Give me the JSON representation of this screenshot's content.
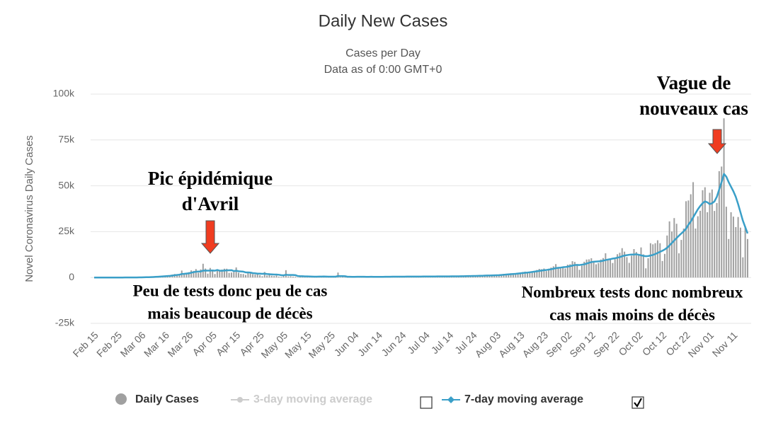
{
  "chart_data": {
    "type": "bar+line",
    "title": "Daily New Cases",
    "subtitle": [
      "Cases per Day",
      "Data as of 0:00 GMT+0"
    ],
    "y_label": "Novel Coronavirus Daily Cases",
    "ylim": [
      -25000,
      100000
    ],
    "yticks": [
      {
        "value": -25000,
        "label": "-25k"
      },
      0,
      {
        "value": 25000,
        "label": "25k"
      },
      {
        "value": 50000,
        "label": "50k"
      },
      {
        "value": 75000,
        "label": "75k"
      },
      {
        "value": 100000,
        "label": "100k"
      }
    ],
    "grid": true,
    "categories": [
      "Feb 15",
      null,
      null,
      null,
      null,
      null,
      null,
      null,
      null,
      null,
      "Feb 25",
      null,
      null,
      null,
      null,
      null,
      null,
      null,
      null,
      null,
      "Mar 06",
      null,
      null,
      null,
      null,
      null,
      null,
      null,
      null,
      null,
      "Mar 16",
      null,
      null,
      null,
      null,
      null,
      null,
      null,
      null,
      null,
      "Mar 26",
      null,
      null,
      null,
      null,
      null,
      null,
      null,
      null,
      null,
      "Apr 05",
      null,
      null,
      null,
      null,
      null,
      null,
      null,
      null,
      null,
      "Apr 15",
      null,
      null,
      null,
      null,
      null,
      null,
      null,
      null,
      null,
      "Apr 25",
      null,
      null,
      null,
      null,
      null,
      null,
      null,
      null,
      null,
      "May 05",
      null,
      null,
      null,
      null,
      null,
      null,
      null,
      null,
      null,
      "May 15",
      null,
      null,
      null,
      null,
      null,
      null,
      null,
      null,
      null,
      "May 25",
      null,
      null,
      null,
      null,
      null,
      null,
      null,
      null,
      null,
      "Jun 04",
      null,
      null,
      null,
      null,
      null,
      null,
      null,
      null,
      null,
      "Jun 14",
      null,
      null,
      null,
      null,
      null,
      null,
      null,
      null,
      null,
      "Jun 24",
      null,
      null,
      null,
      null,
      null,
      null,
      null,
      null,
      null,
      "Jul 04",
      null,
      null,
      null,
      null,
      null,
      null,
      null,
      null,
      null,
      "Jul 14",
      null,
      null,
      null,
      null,
      null,
      null,
      null,
      null,
      null,
      "Jul 24",
      null,
      null,
      null,
      null,
      null,
      null,
      null,
      null,
      null,
      "Aug 03",
      null,
      null,
      null,
      null,
      null,
      null,
      null,
      null,
      null,
      "Aug 13",
      null,
      null,
      null,
      null,
      null,
      null,
      null,
      null,
      null,
      "Aug 23",
      null,
      null,
      null,
      null,
      null,
      null,
      null,
      null,
      null,
      "Sep 02",
      null,
      null,
      null,
      null,
      null,
      null,
      null,
      null,
      null,
      "Sep 12",
      null,
      null,
      null,
      null,
      null,
      null,
      null,
      null,
      null,
      "Sep 22",
      null,
      null,
      null,
      null,
      null,
      null,
      null,
      null,
      null,
      "Oct 02",
      null,
      null,
      null,
      null,
      null,
      null,
      null,
      null,
      null,
      "Oct 12",
      null,
      null,
      null,
      null,
      null,
      null,
      null,
      null,
      null,
      "Oct 22",
      null,
      null,
      null,
      null,
      null,
      null,
      null,
      null,
      null,
      "Nov 01",
      null,
      null,
      null,
      null,
      null,
      null,
      null,
      null,
      null,
      "Nov 11",
      null,
      null,
      null,
      null,
      null,
      null
    ],
    "series": [
      {
        "name": "Daily Cases",
        "kind": "bar",
        "color": "#a0a0a0",
        "values": [
          0,
          0,
          0,
          0,
          0,
          0,
          0,
          0,
          0,
          2,
          3,
          10,
          20,
          40,
          50,
          30,
          50,
          60,
          70,
          100,
          130,
          200,
          230,
          290,
          350,
          480,
          590,
          780,
          840,
          900,
          920,
          1200,
          1100,
          1600,
          1900,
          1600,
          1800,
          3800,
          1700,
          2400,
          2900,
          3900,
          3600,
          4600,
          2600,
          4400,
          7500,
          4900,
          2100,
          5200,
          4300,
          1900,
          3900,
          3700,
          4300,
          4800,
          4800,
          2500,
          2700,
          3000,
          5500,
          2600,
          2000,
          1900,
          1400,
          2500,
          2700,
          1800,
          1600,
          1700,
          1300,
          700,
          3000,
          1100,
          1500,
          1000,
          800,
          1100,
          500,
          400,
          800,
          4000,
          600,
          700,
          500,
          400,
          100,
          600,
          500,
          600,
          600,
          500,
          400,
          300,
          600,
          500,
          700,
          600,
          400,
          300,
          200,
          300,
          700,
          2700,
          200,
          600,
          300,
          300,
          300,
          400,
          500,
          600,
          400,
          300,
          200,
          200,
          500,
          500,
          400,
          400,
          300,
          300,
          400,
          500,
          300,
          600,
          500,
          500,
          400,
          400,
          500,
          500,
          600,
          500,
          400,
          600,
          500,
          500,
          600,
          600,
          500,
          400,
          600,
          600,
          700,
          600,
          600,
          500,
          700,
          800,
          600,
          700,
          800,
          600,
          700,
          700,
          800,
          900,
          900,
          1000,
          800,
          900,
          1000,
          1100,
          1000,
          1200,
          1300,
          1300,
          1200,
          1400,
          1300,
          1600,
          1700,
          2000,
          1900,
          2200,
          2300,
          2100,
          2400,
          2600,
          2700,
          3000,
          3200,
          2800,
          3100,
          3400,
          3600,
          4100,
          4700,
          4500,
          4900,
          3500,
          4800,
          5400,
          6100,
          7300,
          5500,
          4900,
          5400,
          4900,
          7000,
          7200,
          8900,
          8500,
          7100,
          4200,
          6500,
          8600,
          9800,
          9900,
          10500,
          8500,
          7200,
          7900,
          9800,
          10600,
          13200,
          9700,
          10100,
          7900,
          10000,
          12700,
          13500,
          16000,
          14100,
          11100,
          8000,
          11900,
          15500,
          13900,
          12800,
          16400,
          12600,
          5000,
          10500,
          18700,
          18100,
          18700,
          20300,
          18700,
          9000,
          12900,
          22900,
          30600,
          25100,
          32400,
          29300,
          13200,
          20500,
          26700,
          41600,
          42000,
          45400,
          52000,
          26700,
          33400,
          36400,
          47600,
          49200,
          35600,
          46200,
          48000,
          36300,
          40600,
          58000,
          60500,
          86800,
          38600,
          21000,
          35600,
          33200,
          27500,
          33000,
          27200,
          11000,
          28000,
          21000
        ]
      },
      {
        "name": "7-day moving average",
        "kind": "line",
        "color": "#3a9fc8",
        "values": [
          0,
          0,
          0,
          0,
          0,
          0,
          0,
          0,
          0,
          0,
          1,
          2,
          5,
          10,
          18,
          25,
          32,
          40,
          50,
          65,
          90,
          120,
          150,
          180,
          220,
          280,
          350,
          420,
          510,
          600,
          700,
          800,
          900,
          1050,
          1250,
          1400,
          1550,
          1900,
          2000,
          2150,
          2300,
          2600,
          2900,
          3150,
          3250,
          3300,
          3750,
          3800,
          3750,
          3800,
          3850,
          3700,
          4100,
          3700,
          3700,
          3800,
          3900,
          3950,
          4000,
          3500,
          3700,
          3400,
          3300,
          3200,
          2800,
          2800,
          2700,
          2400,
          2300,
          2100,
          2100,
          2000,
          2100,
          1900,
          1800,
          1700,
          1600,
          1600,
          1500,
          1300,
          1200,
          1500,
          1400,
          1400,
          1400,
          1300,
          800,
          700,
          700,
          600,
          600,
          550,
          500,
          480,
          480,
          500,
          520,
          540,
          500,
          480,
          450,
          450,
          470,
          800,
          760,
          760,
          700,
          430,
          400,
          380,
          380,
          400,
          400,
          410,
          400,
          380,
          390,
          400,
          390,
          390,
          380,
          380,
          380,
          400,
          400,
          430,
          440,
          450,
          460,
          450,
          470,
          480,
          490,
          500,
          490,
          500,
          510,
          520,
          530,
          540,
          540,
          540,
          550,
          560,
          580,
          590,
          600,
          600,
          610,
          620,
          630,
          650,
          660,
          670,
          680,
          700,
          720,
          750,
          780,
          800,
          830,
          860,
          890,
          930,
          970,
          1020,
          1070,
          1100,
          1150,
          1200,
          1250,
          1300,
          1400,
          1500,
          1600,
          1700,
          1800,
          1900,
          2000,
          2150,
          2300,
          2450,
          2600,
          2700,
          2850,
          3000,
          3200,
          3400,
          3600,
          3800,
          4000,
          4100,
          4300,
          4500,
          4800,
          5100,
          5300,
          5400,
          5600,
          5700,
          5900,
          6200,
          6500,
          6800,
          6900,
          6800,
          7000,
          7200,
          7600,
          8000,
          8400,
          8600,
          8700,
          8800,
          8900,
          9200,
          9500,
          9800,
          10000,
          10300,
          10500,
          10800,
          11100,
          11600,
          12000,
          12200,
          12400,
          12500,
          12500,
          12700,
          12400,
          12100,
          11800,
          11600,
          11700,
          12000,
          12300,
          12800,
          13400,
          14000,
          14600,
          15300,
          16200,
          17500,
          18800,
          20200,
          21500,
          22800,
          24000,
          25200,
          26600,
          28800,
          30500,
          32800,
          35000,
          37200,
          39000,
          40500,
          41500,
          41000,
          40000,
          40500,
          41500,
          44000,
          48000,
          52000,
          56500,
          55000,
          52000,
          49500,
          47000,
          44000,
          40000,
          35500,
          31000,
          27500,
          24000
        ]
      }
    ],
    "hidden_series": [
      {
        "name": "3-day moving average",
        "color": "#cccccc"
      }
    ],
    "annotations": [
      {
        "lines": [
          "Pic épidémique",
          "d'Avril"
        ]
      },
      {
        "lines": [
          "Vague de",
          "nouveaux cas"
        ]
      },
      {
        "lines": [
          "Peu de tests donc peu de cas",
          "mais  beaucoup de décès"
        ]
      },
      {
        "lines": [
          "Nombreux tests donc nombreux",
          "cas mais  moins de décès"
        ]
      }
    ]
  }
}
